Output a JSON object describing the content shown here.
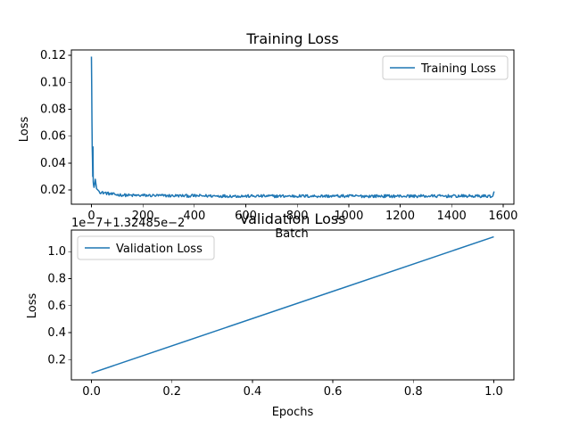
{
  "chart_data": [
    {
      "type": "line",
      "title": "Training Loss",
      "xlabel": "Batch",
      "ylabel": "Loss",
      "xlim": [
        -78,
        1642
      ],
      "ylim": [
        0.0095,
        0.124
      ],
      "xticks": [
        0,
        200,
        400,
        600,
        800,
        1000,
        1200,
        1400,
        1600
      ],
      "yticks": [
        0.02,
        0.04,
        0.06,
        0.08,
        0.1,
        0.12
      ],
      "xtick_labels": [
        "0",
        "200",
        "400",
        "600",
        "800",
        "1000",
        "1200",
        "1400",
        "1600"
      ],
      "ytick_labels": [
        "0.02",
        "0.04",
        "0.06",
        "0.08",
        "0.10",
        "0.12"
      ],
      "legend_position": "top-right",
      "grid": false,
      "series": [
        {
          "name": "Training Loss",
          "color": "#1f77b4",
          "x": [
            0,
            1,
            2,
            3,
            4,
            5,
            6,
            7,
            8,
            10,
            12,
            15,
            20,
            25,
            30,
            40,
            50,
            75,
            100,
            150,
            200,
            300,
            400,
            500,
            600,
            700,
            800,
            900,
            1000,
            1100,
            1200,
            1300,
            1400,
            1500,
            1560,
            1565
          ],
          "y": [
            0.119,
            0.098,
            0.071,
            0.052,
            0.043,
            0.03,
            0.052,
            0.026,
            0.024,
            0.022,
            0.024,
            0.028,
            0.021,
            0.02,
            0.019,
            0.018,
            0.018,
            0.017,
            0.0165,
            0.016,
            0.016,
            0.0158,
            0.0157,
            0.0156,
            0.0155,
            0.0155,
            0.0155,
            0.0155,
            0.0155,
            0.0155,
            0.0155,
            0.0155,
            0.0155,
            0.0155,
            0.0155,
            0.019
          ]
        }
      ]
    },
    {
      "type": "line",
      "title": "Validation Loss",
      "xlabel": "Epochs",
      "ylabel": "Loss",
      "offset_text": "1e−7+1.32485e−2",
      "xlim": [
        -0.05,
        1.05
      ],
      "ylim": [
        0.05,
        1.16
      ],
      "xticks": [
        0.0,
        0.2,
        0.4,
        0.6,
        0.8,
        1.0
      ],
      "yticks": [
        0.2,
        0.4,
        0.6,
        0.8,
        1.0
      ],
      "xtick_labels": [
        "0.0",
        "0.2",
        "0.4",
        "0.6",
        "0.8",
        "1.0"
      ],
      "ytick_labels": [
        "0.2",
        "0.4",
        "0.6",
        "0.8",
        "1.0"
      ],
      "legend_position": "top-left",
      "grid": false,
      "series": [
        {
          "name": "Validation Loss",
          "color": "#1f77b4",
          "x": [
            0.0,
            1.0
          ],
          "y": [
            0.1,
            1.11
          ]
        }
      ]
    }
  ]
}
